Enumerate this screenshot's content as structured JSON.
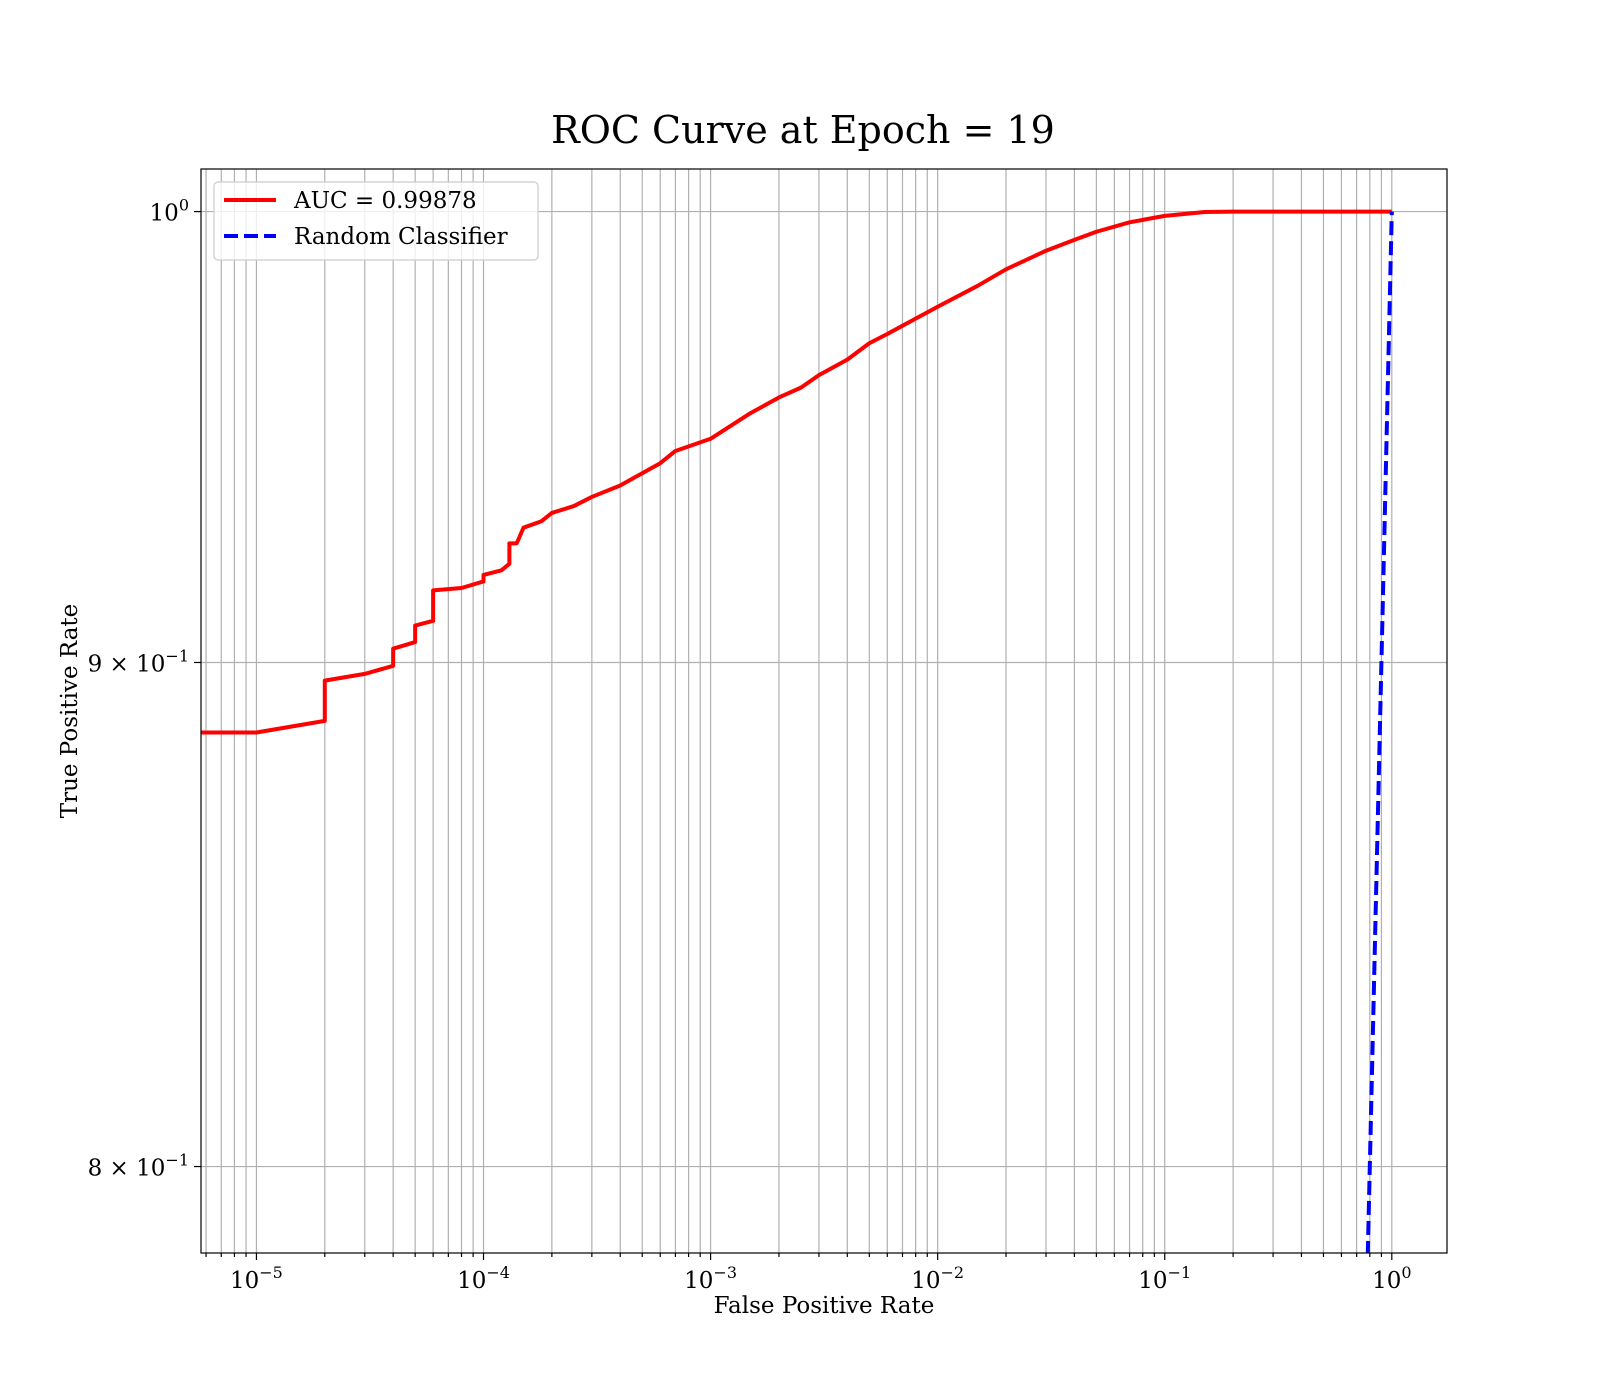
{
  "chart_data": {
    "type": "line",
    "title": "ROC Curve at Epoch = 19",
    "xlabel": "False Positive Rate",
    "ylabel": "True Positive Rate",
    "xscale": "log",
    "yscale": "log",
    "xlim": [
      5.7e-06,
      1.75
    ],
    "ylim": [
      0.784,
      1.01
    ],
    "grid": true,
    "grid_minor": true,
    "legend_position": "top-left",
    "x_ticks": [
      {
        "value": 1e-05,
        "base": "10",
        "exp": "−5"
      },
      {
        "value": 0.0001,
        "base": "10",
        "exp": "−4"
      },
      {
        "value": 0.001,
        "base": "10",
        "exp": "−3"
      },
      {
        "value": 0.01,
        "base": "10",
        "exp": "−2"
      },
      {
        "value": 0.1,
        "base": "10",
        "exp": "−1"
      },
      {
        "value": 1,
        "base": "10",
        "exp": "0"
      }
    ],
    "y_ticks": [
      {
        "value": 1.0,
        "base": "10",
        "exp": "0"
      },
      {
        "value": 0.9,
        "base": "9 × 10",
        "exp": "−1"
      },
      {
        "value": 0.8,
        "base": "8 × 10",
        "exp": "−1"
      }
    ],
    "series": [
      {
        "name": "AUC = 0.99878",
        "color": "#ff0000",
        "dash": "solid",
        "points": [
          [
            5.7e-06,
            0.8854
          ],
          [
            1e-05,
            0.8854
          ],
          [
            2e-05,
            0.8878
          ],
          [
            2e-05,
            0.8962
          ],
          [
            3e-05,
            0.8976
          ],
          [
            4e-05,
            0.8993
          ],
          [
            4e-05,
            0.9029
          ],
          [
            5e-05,
            0.9043
          ],
          [
            5e-05,
            0.9078
          ],
          [
            6e-05,
            0.9088
          ],
          [
            6e-05,
            0.9153
          ],
          [
            8e-05,
            0.9158
          ],
          [
            0.0001,
            0.9172
          ],
          [
            0.0001,
            0.9186
          ],
          [
            0.00012,
            0.9196
          ],
          [
            0.00013,
            0.921
          ],
          [
            0.00013,
            0.9254
          ],
          [
            0.00014,
            0.9254
          ],
          [
            0.00015,
            0.9288
          ],
          [
            0.00018,
            0.9302
          ],
          [
            0.0002,
            0.932
          ],
          [
            0.00025,
            0.9335
          ],
          [
            0.0003,
            0.9355
          ],
          [
            0.0004,
            0.938
          ],
          [
            0.0005,
            0.9407
          ],
          [
            0.0006,
            0.9429
          ],
          [
            0.0007,
            0.9456
          ],
          [
            0.001,
            0.9483
          ],
          [
            0.0015,
            0.954
          ],
          [
            0.002,
            0.9575
          ],
          [
            0.0025,
            0.9597
          ],
          [
            0.003,
            0.9625
          ],
          [
            0.004,
            0.966
          ],
          [
            0.005,
            0.9697
          ],
          [
            0.006,
            0.9718
          ],
          [
            0.008,
            0.9753
          ],
          [
            0.01,
            0.978
          ],
          [
            0.015,
            0.9828
          ],
          [
            0.02,
            0.9866
          ],
          [
            0.03,
            0.9909
          ],
          [
            0.04,
            0.9934
          ],
          [
            0.05,
            0.9953
          ],
          [
            0.07,
            0.9975
          ],
          [
            0.1,
            0.999
          ],
          [
            0.15,
            0.9999
          ],
          [
            0.2,
            1.0
          ],
          [
            1.0,
            1.0
          ]
        ]
      },
      {
        "name": "Random Classifier",
        "color": "#0000ff",
        "dash": "dashed",
        "points": [
          [
            0.78,
            0.78
          ],
          [
            1.0,
            1.0
          ]
        ]
      }
    ]
  }
}
